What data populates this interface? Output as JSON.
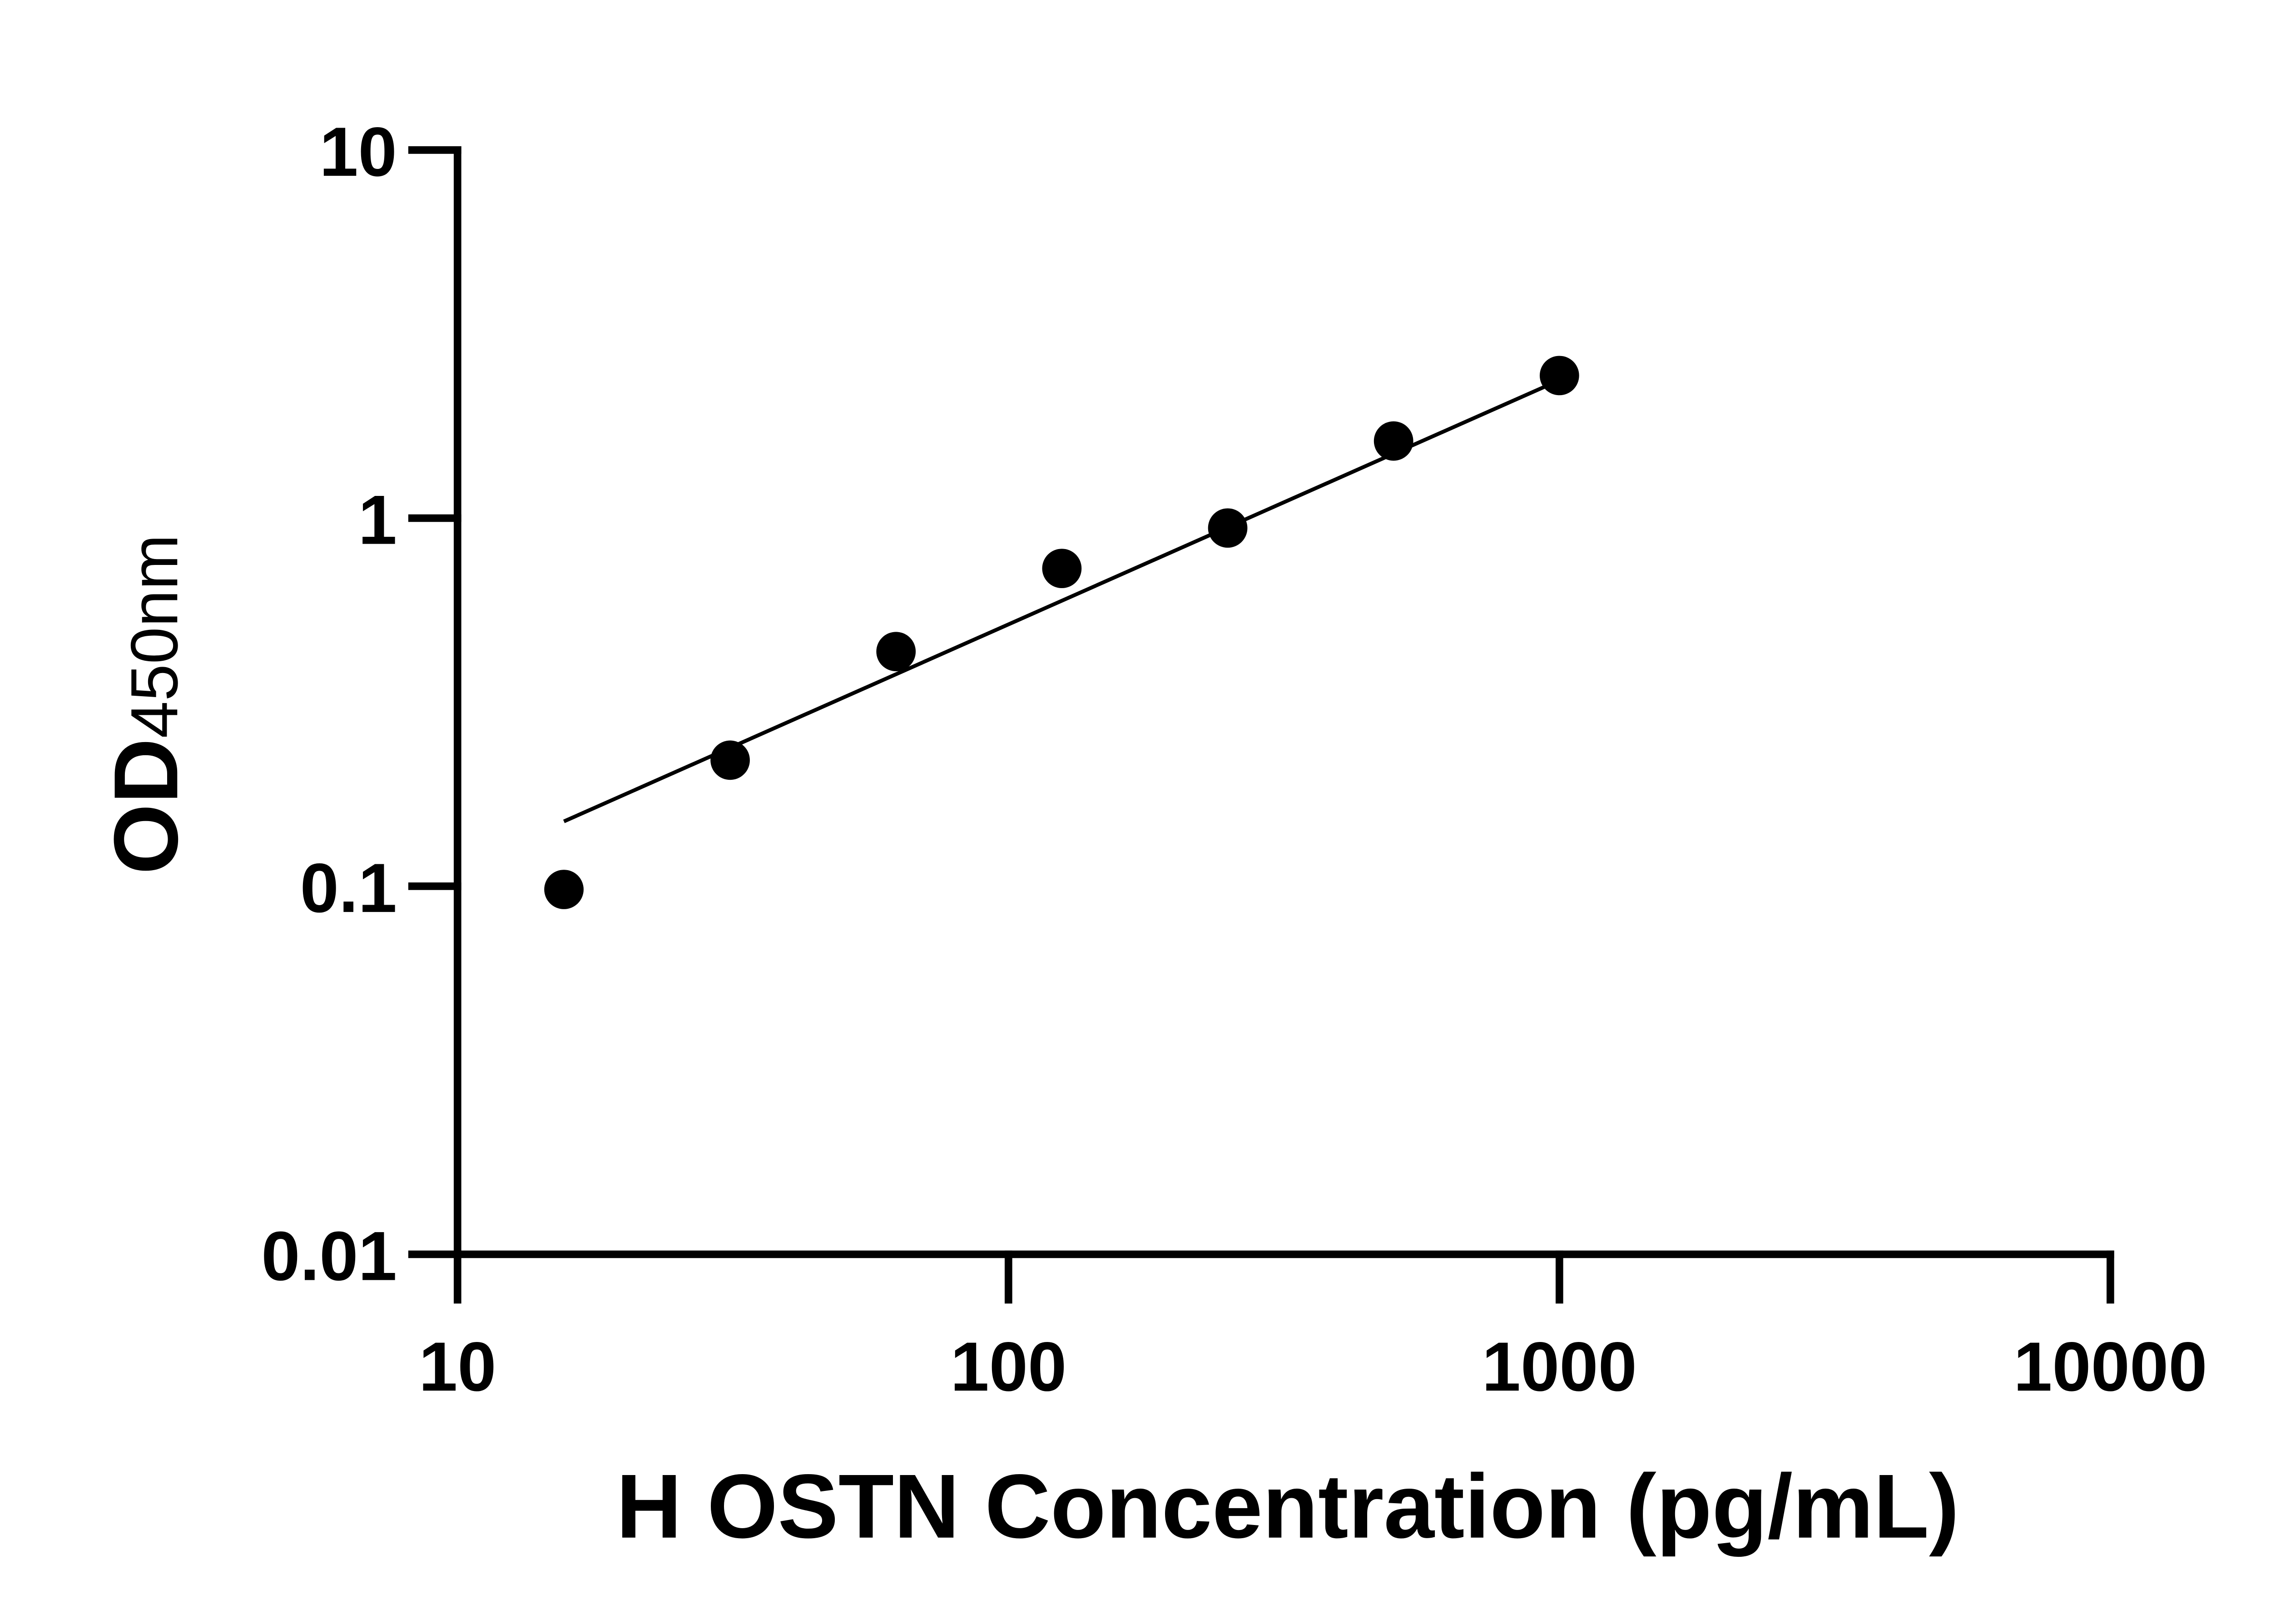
{
  "chart_data": {
    "type": "scatter",
    "title": "",
    "xlabel": "H OSTN Concentration (pg/mL)",
    "ylabel_main": "OD",
    "ylabel_sub": "450nm",
    "x_scale": "log",
    "y_scale": "log",
    "xlim": [
      10,
      10000
    ],
    "ylim": [
      0.01,
      10
    ],
    "x_ticks": [
      "10",
      "100",
      "1000",
      "10000"
    ],
    "y_ticks": [
      "0.01",
      "0.1",
      "1",
      "10"
    ],
    "grid": false,
    "legend": "none",
    "point_color": "#000000",
    "points": {
      "x": [
        15.6,
        31.25,
        62.5,
        125,
        250,
        500,
        1000
      ],
      "y": [
        0.098,
        0.22,
        0.434,
        0.73,
        0.94,
        1.62,
        2.44
      ]
    },
    "fit_line": {
      "x": [
        15.6,
        1000
      ],
      "y": [
        0.15,
        2.37
      ]
    }
  }
}
